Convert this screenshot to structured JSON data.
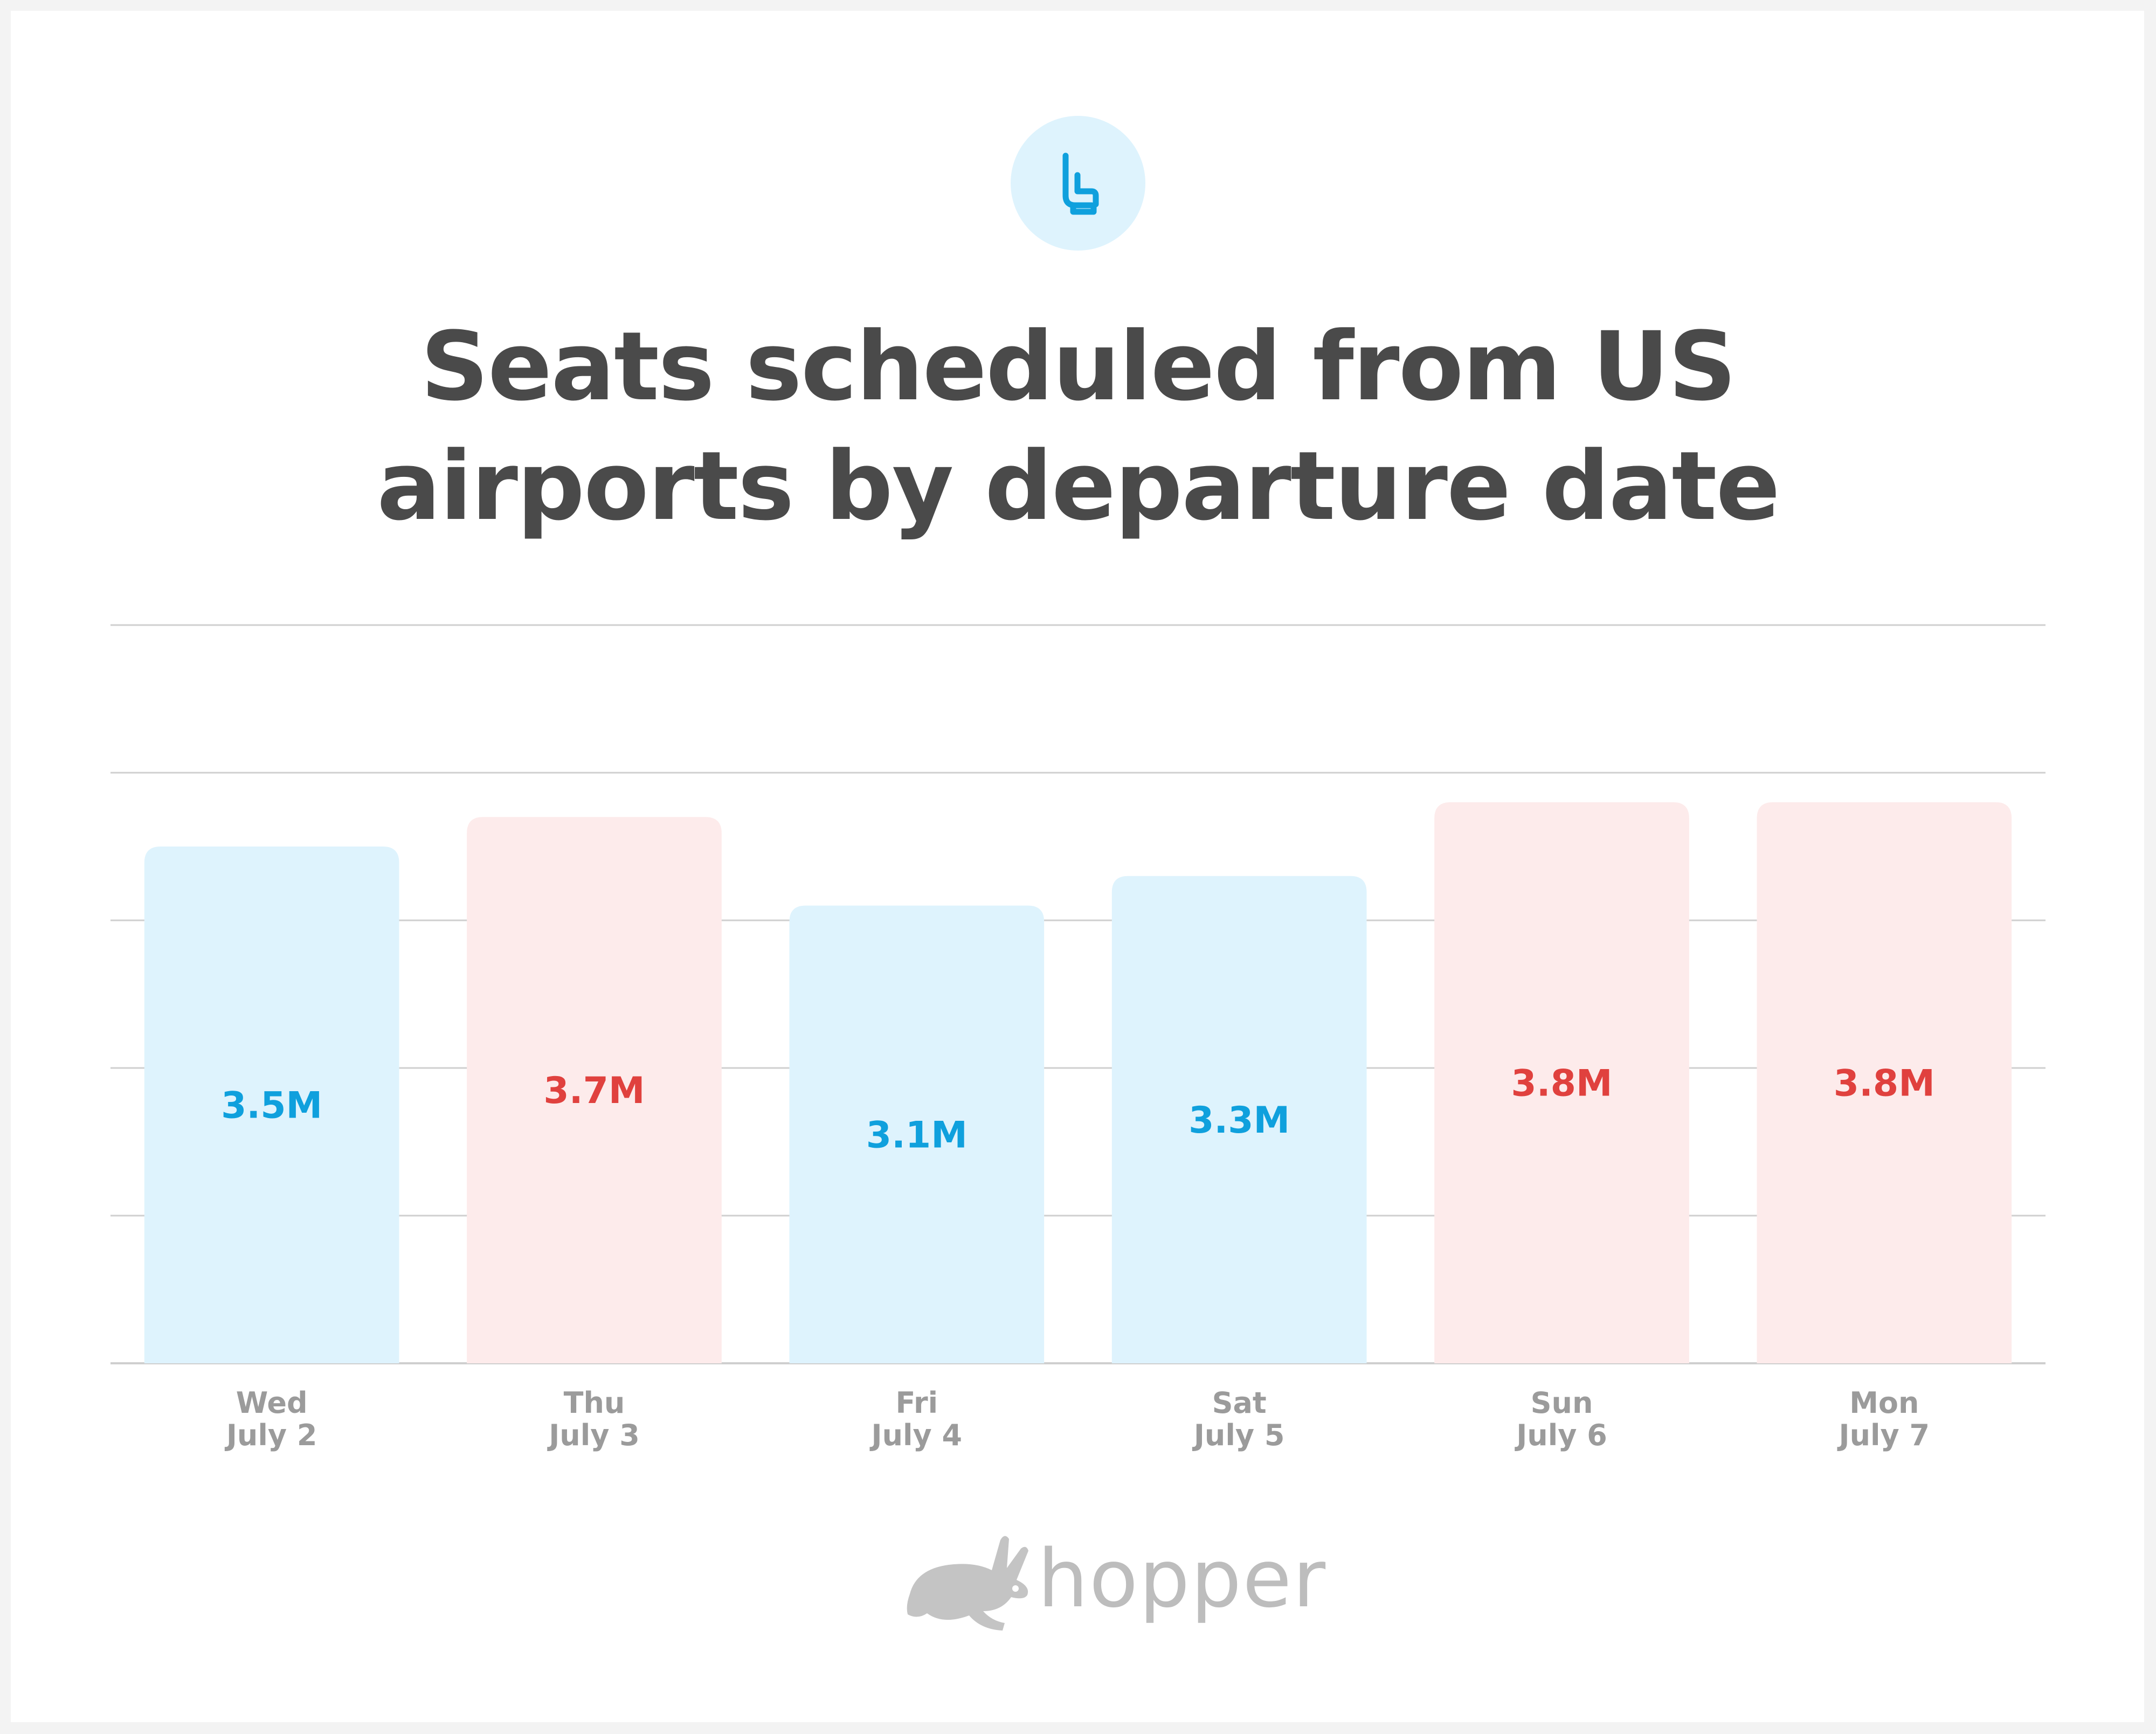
{
  "colors": {
    "blue_bar": "#def3fd",
    "blue_text": "#0fa0dd",
    "red_bar": "#fdebeb",
    "red_text": "#e0413e",
    "title": "#4a4a4a",
    "axis_label": "#9b9b9b",
    "grid": "#cfcfcf",
    "logo": "#bdbdbd"
  },
  "header": {
    "icon": "seat-icon",
    "title_line1": "Seats scheduled from US",
    "title_line2": "airports by departure date"
  },
  "chart_data": {
    "type": "bar",
    "title": "Seats scheduled from US airports by departure date",
    "xlabel": "",
    "ylabel": "",
    "unit": "M",
    "ylim": [
      0,
      5
    ],
    "grid": true,
    "categories": [
      {
        "day": "Wed",
        "date": "July 2"
      },
      {
        "day": "Thu",
        "date": "July 3"
      },
      {
        "day": "Fri",
        "date": "July 4"
      },
      {
        "day": "Sat",
        "date": "July 5"
      },
      {
        "day": "Sun",
        "date": "July 6"
      },
      {
        "day": "Mon",
        "date": "July 7"
      }
    ],
    "values": [
      3.5,
      3.7,
      3.1,
      3.3,
      3.8,
      3.8
    ],
    "labels": [
      "3.5M",
      "3.7M",
      "3.1M",
      "3.3M",
      "3.8M",
      "3.8M"
    ],
    "bar_colors": [
      "blue",
      "red",
      "blue",
      "blue",
      "red",
      "red"
    ]
  },
  "footer": {
    "logo_icon": "rabbit-icon",
    "brand": "hopper"
  }
}
